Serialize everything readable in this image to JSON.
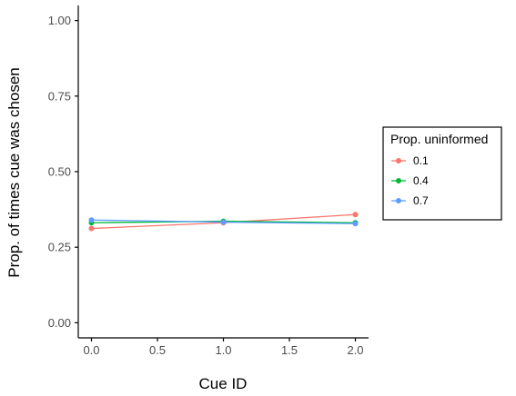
{
  "chart_data": {
    "type": "line",
    "xlabel": "Cue ID",
    "ylabel": "Prop. of times cue was chosen",
    "x": [
      0.0,
      1.0,
      2.0
    ],
    "xlim": [
      -0.1,
      2.1
    ],
    "ylim": [
      -0.05,
      1.05
    ],
    "xticks": [
      0.0,
      0.5,
      1.0,
      1.5,
      2.0
    ],
    "xtick_labels": [
      "0.0",
      "0.5",
      "1.0",
      "1.5",
      "2.0"
    ],
    "yticks": [
      0.0,
      0.25,
      0.5,
      0.75,
      1.0
    ],
    "ytick_labels": [
      "0.00",
      "0.25",
      "0.50",
      "0.75",
      "1.00"
    ],
    "grid": false,
    "legend": {
      "title": "Prop. uninformed",
      "position": "right"
    },
    "series": [
      {
        "name": "0.1",
        "color": "#F8766D",
        "values": [
          0.312,
          0.331,
          0.358
        ]
      },
      {
        "name": "0.4",
        "color": "#00BA38",
        "values": [
          0.331,
          0.336,
          0.331
        ]
      },
      {
        "name": "0.7",
        "color": "#619CFF",
        "values": [
          0.34,
          0.333,
          0.328
        ]
      }
    ]
  }
}
